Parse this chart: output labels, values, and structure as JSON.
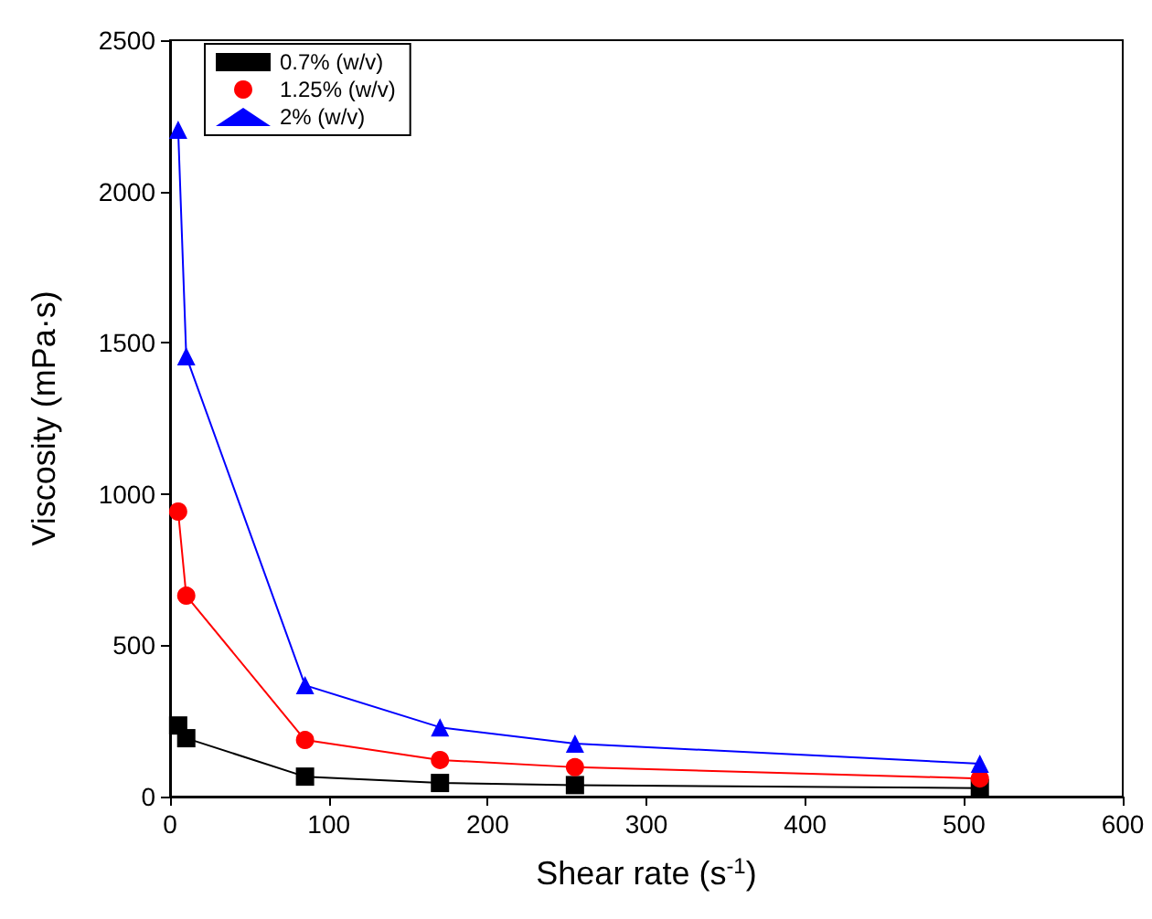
{
  "chart_data": {
    "type": "line",
    "xlabel": "Shear rate (s$^{-1}$)",
    "ylabel": "Viscosity (mPa·s)",
    "x": [
      5.1,
      10.2,
      85,
      170,
      255,
      510
    ],
    "series": [
      {
        "name": "0.7% (w/v)",
        "color": "#000000",
        "marker": "square",
        "values": [
          235,
          193,
          66,
          45,
          38,
          28
        ]
      },
      {
        "name": "1.25% (w/v)",
        "color": "#ff0000",
        "marker": "circle",
        "values": [
          942,
          664,
          187,
          121,
          97,
          60
        ]
      },
      {
        "name": "2% (w/v)",
        "color": "#0000ff",
        "marker": "triangle",
        "values": [
          2204,
          1455,
          368,
          229,
          175,
          109
        ]
      }
    ],
    "xlim": [
      0,
      600
    ],
    "xticks": [
      0,
      100,
      200,
      300,
      400,
      500,
      600
    ],
    "ylim": [
      0,
      2500
    ],
    "yticks": [
      0,
      500,
      1000,
      1500,
      2000,
      2500
    ],
    "grid": false,
    "legend": "top left",
    "line_style": "solid"
  }
}
